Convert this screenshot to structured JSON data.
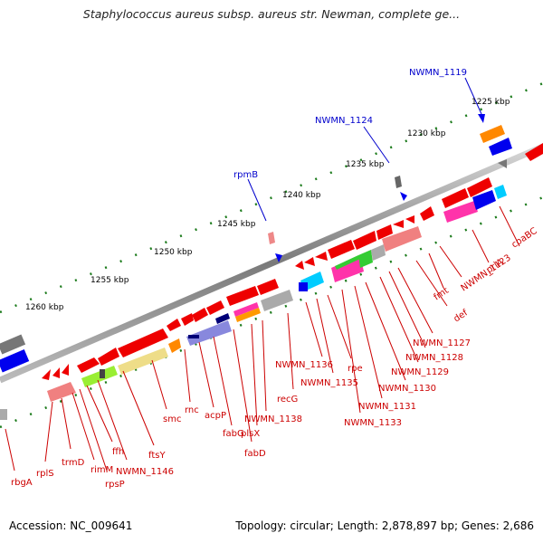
{
  "title": "Staphylococcus aureus subsp. aureus str. Newman, complete ge...",
  "footer": {
    "accession": "Accession: NC_009641",
    "summary": "Topology: circular; Length: 2,878,897 bp; Genes: 2,686"
  },
  "colors": {
    "backbone": "#808080",
    "tick": "#0a7a0a",
    "gene_label": "#cc0000",
    "feature_label": "#0000cc"
  },
  "scale_labels": [
    "1225 kbp",
    "1230 kbp",
    "1235 kbp",
    "1240 kbp",
    "1245 kbp",
    "1250 kbp",
    "1255 kbp",
    "1260 kbp"
  ],
  "feature_labels": [
    "NWMN_1119",
    "NWMN_1124",
    "rpmB"
  ],
  "gene_labels": [
    "coaBC",
    "priA",
    "NWMN_1123",
    "fmt",
    "def",
    "NWMN_1127",
    "NWMN_1128",
    "NWMN_1129",
    "NWMN_1130",
    "NWMN_1131",
    "NWMN_1133",
    "rpe",
    "NWMN_1135",
    "NWMN_1136",
    "recG",
    "NWMN_1138",
    "plsX",
    "fabD",
    "fabG",
    "acpP",
    "rnc",
    "smc",
    "ftsY",
    "NWMN_1146",
    "ffh",
    "rpsP",
    "rimM",
    "trmD",
    "rplS",
    "rbgA"
  ]
}
